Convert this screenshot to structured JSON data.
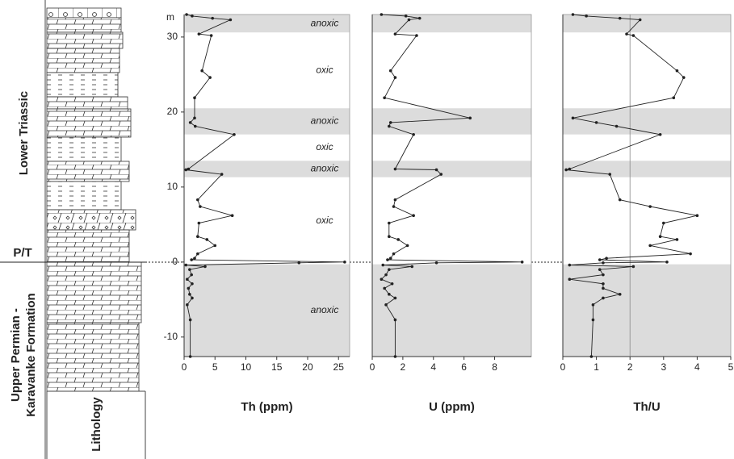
{
  "stratigraphy": {
    "upper_unit": "Lower Triassic",
    "boundary": "P/T",
    "lower_unit_lines": [
      "Upper Permian -",
      "Karavanke Formation"
    ],
    "column_title": "Lithology"
  },
  "zones": [
    {
      "label": "anoxic",
      "from": 30.6,
      "to": 33,
      "color": "#dcdcdc"
    },
    {
      "label": "oxic",
      "from": 20.5,
      "to": 30.6,
      "color": "#ffffff"
    },
    {
      "label": "anoxic",
      "from": 17,
      "to": 20.5,
      "color": "#dcdcdc"
    },
    {
      "label": "oxic",
      "from": 13.5,
      "to": 17,
      "color": "#ffffff"
    },
    {
      "label": "anoxic",
      "from": 11.3,
      "to": 13.5,
      "color": "#dcdcdc"
    },
    {
      "label": "oxic",
      "from": -0.3,
      "to": 11.3,
      "color": "#ffffff"
    },
    {
      "label": "anoxic",
      "from": -12.6,
      "to": -0.3,
      "color": "#dcdcdc"
    }
  ],
  "chart_data": [
    {
      "type": "line",
      "xlabel": "Th (ppm)",
      "ylabel": "m",
      "color": "#222222",
      "xlim": [
        0,
        26.8
      ],
      "xticks": [
        0,
        5,
        10,
        15,
        20,
        25
      ],
      "ylim": [
        -12.6,
        33
      ],
      "yticks": [
        -10,
        0,
        10,
        20,
        30
      ],
      "depth": [
        33.0,
        32.8,
        32.5,
        32.3,
        30.4,
        30.2,
        25.5,
        24.6,
        21.9,
        19.2,
        18.6,
        18.1,
        17.0,
        12.4,
        12.3,
        11.7,
        8.3,
        7.4,
        6.2,
        5.2,
        3.4,
        3.0,
        2.2,
        1.1,
        0.5,
        0.3,
        0,
        -0.1,
        -0.4,
        -0.6,
        -1.0,
        -1.7,
        -2.3,
        -2.9,
        -3.5,
        -4.3,
        -4.8,
        -5.7,
        -7.7,
        -12.6
      ],
      "values": [
        0.4,
        1.3,
        4.6,
        7.5,
        2.4,
        4.4,
        2.9,
        4.2,
        1.7,
        1.7,
        1.0,
        1.8,
        8.1,
        0.7,
        0.3,
        6.1,
        2.2,
        2.6,
        7.8,
        2.4,
        2.2,
        3.7,
        5.0,
        2.2,
        1.7,
        1.2,
        26,
        18.6,
        0.3,
        3.4,
        0.9,
        1.2,
        0.5,
        1.3,
        0.7,
        0.9,
        1.3,
        0.5,
        1.0,
        1.0
      ]
    },
    {
      "type": "line",
      "xlabel": "U (ppm)",
      "color": "#222222",
      "xlim": [
        0,
        10.4
      ],
      "xticks": [
        0,
        2,
        4,
        6,
        8
      ],
      "ylim": [
        -12.6,
        33
      ],
      "depth": [
        33.0,
        32.8,
        32.5,
        32.3,
        30.4,
        30.2,
        25.5,
        24.6,
        21.9,
        19.2,
        18.6,
        18.1,
        17.0,
        12.4,
        12.3,
        11.7,
        8.3,
        7.4,
        6.2,
        5.2,
        3.4,
        3.0,
        2.2,
        1.1,
        0.5,
        0.3,
        0,
        -0.1,
        -0.4,
        -0.6,
        -1.0,
        -1.7,
        -2.3,
        -2.9,
        -3.5,
        -4.3,
        -4.8,
        -5.7,
        -7.7,
        -12.6
      ],
      "values": [
        0.6,
        2.2,
        3.1,
        2.4,
        1.5,
        2.9,
        1.2,
        1.5,
        0.8,
        6.4,
        1.2,
        1.1,
        2.7,
        1.5,
        4.2,
        4.5,
        1.5,
        1.4,
        2.7,
        1.1,
        1.1,
        1.7,
        2.3,
        1.4,
        1.2,
        1.0,
        9.8,
        4.2,
        0.7,
        2.6,
        1.1,
        0.9,
        0.6,
        1.3,
        0.8,
        1.1,
        1.5,
        0.9,
        1.5,
        1.5
      ]
    },
    {
      "type": "line",
      "xlabel": "Th/U",
      "color": "#222222",
      "reference_line": 2,
      "xlim": [
        0,
        5
      ],
      "xticks": [
        0,
        1,
        2,
        3,
        4,
        5
      ],
      "ylim": [
        -12.6,
        33
      ],
      "depth": [
        33.0,
        32.8,
        32.5,
        32.3,
        30.4,
        30.2,
        25.5,
        24.6,
        21.9,
        19.2,
        18.6,
        18.1,
        17.0,
        12.4,
        12.3,
        11.7,
        8.3,
        7.4,
        6.2,
        5.2,
        3.4,
        3.0,
        2.2,
        1.1,
        0.5,
        0.3,
        0,
        -0.1,
        -0.4,
        -0.6,
        -1.0,
        -1.7,
        -2.3,
        -2.9,
        -3.5,
        -4.3,
        -4.8,
        -5.7,
        -7.7,
        -12.6
      ],
      "values": [
        0.3,
        0.7,
        1.7,
        2.3,
        1.9,
        2.1,
        3.4,
        3.6,
        3.3,
        0.3,
        1.0,
        1.6,
        2.9,
        0.2,
        0.1,
        1.4,
        1.7,
        2.6,
        4.0,
        3.0,
        2.9,
        3.4,
        2.6,
        3.8,
        1.3,
        1.1,
        3.1,
        1.2,
        0.2,
        2.1,
        1.1,
        1.2,
        0.2,
        1.2,
        1.2,
        1.7,
        1.2,
        0.9,
        0.9,
        0.85
      ]
    }
  ]
}
